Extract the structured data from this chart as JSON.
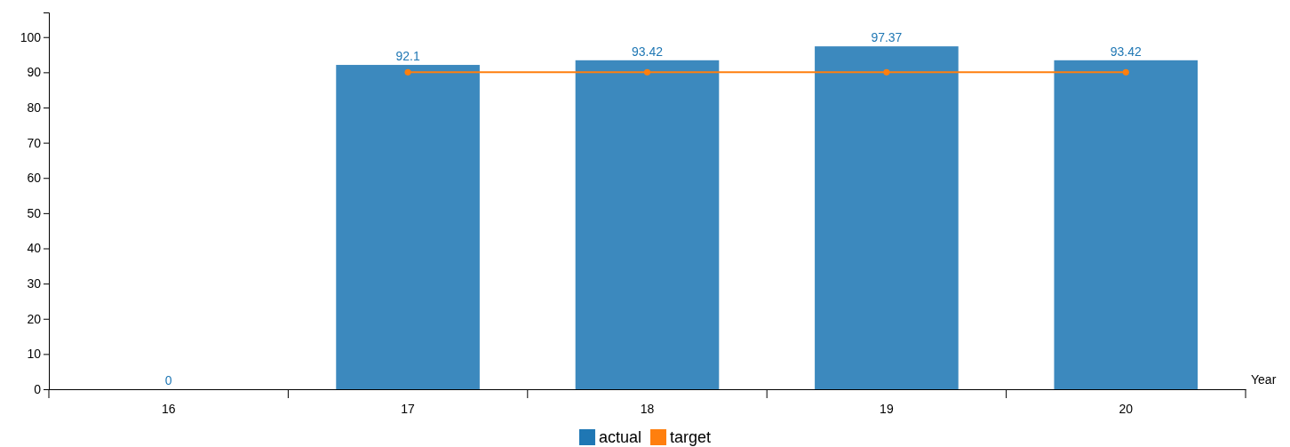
{
  "chart_data": {
    "type": "bar",
    "xlabel": "Year",
    "categories": [
      "16",
      "17",
      "18",
      "19",
      "20"
    ],
    "series": [
      {
        "name": "actual",
        "color": "#1f77b4",
        "values": [
          0,
          92.1,
          93.42,
          97.37,
          93.42
        ],
        "value_labels": [
          "0",
          "92.1",
          "93.42",
          "97.37",
          "93.42"
        ]
      },
      {
        "name": "target",
        "type": "line",
        "color": "#ff7f0e",
        "values": [
          null,
          90,
          90,
          90,
          90
        ]
      }
    ],
    "ylim": [
      0,
      107
    ],
    "yticks": [
      0,
      10,
      20,
      30,
      40,
      50,
      60,
      70,
      80,
      90,
      100
    ],
    "legend": "bottom",
    "grid": false,
    "marker": "circle",
    "line_style": "solid"
  }
}
